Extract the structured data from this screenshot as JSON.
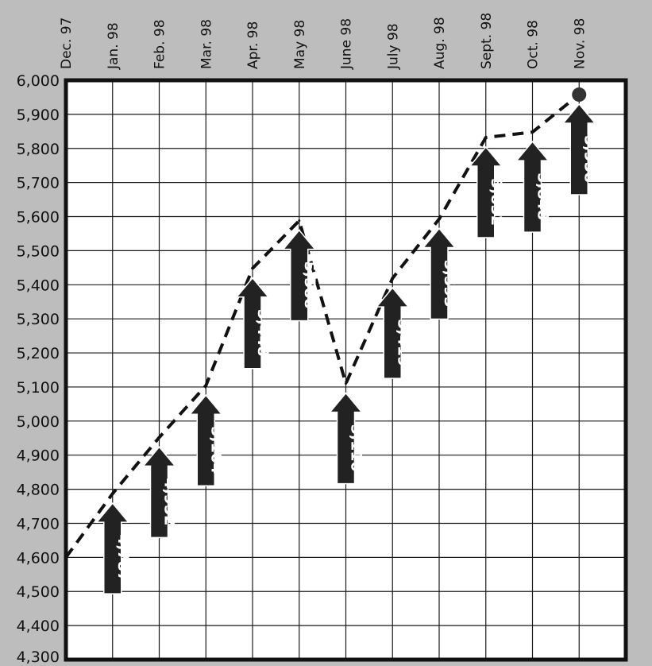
{
  "chart_data": {
    "type": "line",
    "title": "",
    "xlabel": "",
    "ylabel": "",
    "categories": [
      "Dec. 97",
      "Jan. 98",
      "Feb. 98",
      "Mar. 98",
      "Apr. 98",
      "May 98",
      "June 98",
      "July 98",
      "Aug. 98",
      "Sept. 98",
      "Oct. 98",
      "Nov. 98"
    ],
    "yticks": [
      "6,000",
      "5,900",
      "5,800",
      "5,700",
      "5,600",
      "5,500",
      "5,400",
      "5,300",
      "5,200",
      "5,100",
      "5,000",
      "4,900",
      "4,800",
      "4,700",
      "4,600",
      "4,500",
      "4,400",
      "4,300"
    ],
    "ylim": [
      4300,
      6000
    ],
    "grid": true,
    "series": [
      {
        "values": [
          4600,
          4787,
          4952,
          5104,
          5448,
          5588,
          5110,
          5419,
          5593,
          5832,
          5848,
          5958
        ],
        "line_style": "dashed",
        "color": "#111111",
        "end_marker": "dot"
      }
    ],
    "data_labels": [
      {
        "category": "Jan. 98",
        "text": "4,787"
      },
      {
        "category": "Feb. 98",
        "text": "4,952"
      },
      {
        "category": "Mar. 98",
        "text": "5,104"
      },
      {
        "category": "Apr. 98",
        "text": "5,448"
      },
      {
        "category": "May 98",
        "text": "5,588"
      },
      {
        "category": "June 98",
        "text": "5,110"
      },
      {
        "category": "July 98",
        "text": "5,419"
      },
      {
        "category": "Aug. 98",
        "text": "5,593"
      },
      {
        "category": "Sept. 98",
        "text": "5,832"
      },
      {
        "category": "Oct. 98",
        "text": "5,848"
      },
      {
        "category": "Nov. 98",
        "text": "5,958"
      }
    ],
    "colors": {
      "background": "#bdbdbd",
      "plot_background": "#ffffff",
      "grid": "#1a1a1a",
      "arrow": "#222222"
    }
  }
}
